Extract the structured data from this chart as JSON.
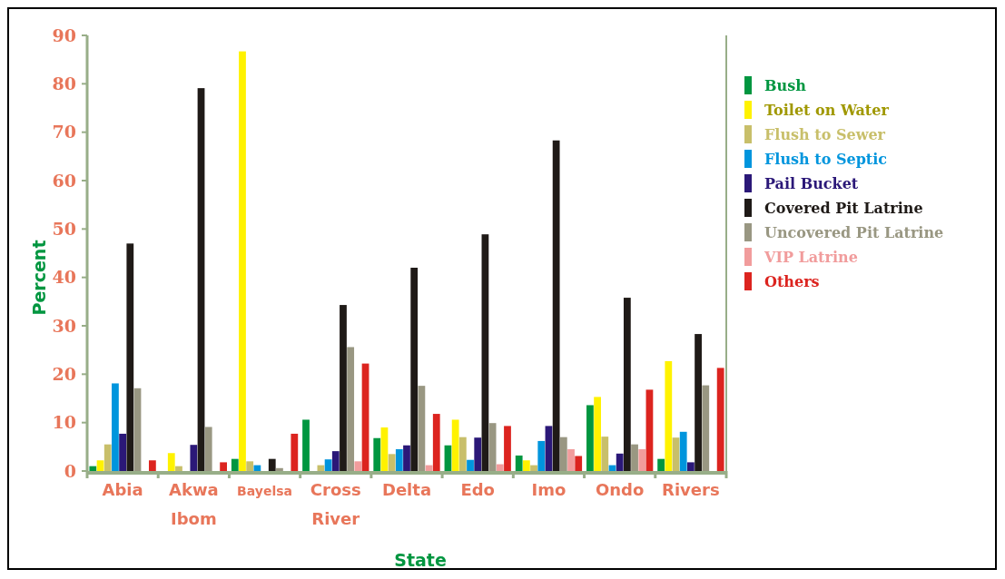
{
  "chart_data": {
    "type": "bar",
    "xlabel": "State",
    "ylabel": "Percent",
    "categories": [
      "Abia",
      "Akwa Ibom",
      "Bayelsa",
      "Cross River",
      "Delta",
      "Edo",
      "Imo",
      "Ondo",
      "Rivers"
    ],
    "ylim": [
      0,
      90
    ],
    "yticks": [
      0,
      10,
      20,
      30,
      40,
      50,
      60,
      70,
      80,
      90
    ],
    "grid": false,
    "legend": "right",
    "series": [
      {
        "name": "Bush",
        "color": "#009640",
        "values": [
          1,
          0,
          2.5,
          10.6,
          6.8,
          5.3,
          3.2,
          13.6,
          2.5
        ]
      },
      {
        "name": "Toilet on Water",
        "color": "#fff200",
        "values": [
          2.2,
          3.7,
          86.7,
          0,
          9,
          10.6,
          2.2,
          15.3,
          22.7
        ]
      },
      {
        "name": "Flush to Sewer",
        "color": "#c8bf6a",
        "values": [
          5.5,
          1,
          2,
          1.2,
          3.5,
          7,
          1.2,
          7.1,
          6.9
        ]
      },
      {
        "name": "Flush to Septic",
        "color": "#0095dd",
        "values": [
          18.1,
          0,
          1.2,
          2.4,
          4.5,
          2.3,
          6.2,
          1.2,
          8.1
        ]
      },
      {
        "name": "Pail Bucket",
        "color": "#2b1878",
        "values": [
          7.7,
          5.4,
          0,
          4.1,
          5.3,
          6.9,
          9.3,
          3.6,
          1.8
        ]
      },
      {
        "name": "Covered Pit Latrine",
        "color": "#1f1a17",
        "values": [
          47,
          79.1,
          2.5,
          34.3,
          42,
          48.9,
          68.3,
          35.8,
          28.3
        ]
      },
      {
        "name": "Uncovered Pit Latrine",
        "color": "#999782",
        "values": [
          17.1,
          9.1,
          0.6,
          25.6,
          17.6,
          9.9,
          7,
          5.5,
          17.7
        ]
      },
      {
        "name": "VIP Latrine",
        "color": "#f19c9c",
        "values": [
          0,
          0,
          0,
          2,
          1.2,
          1.4,
          4.5,
          4.5,
          0
        ]
      },
      {
        "name": "Others",
        "color": "#dc241f",
        "values": [
          2.2,
          1.8,
          7.7,
          22.2,
          11.8,
          9.3,
          3.1,
          16.8,
          21.3
        ]
      }
    ]
  }
}
